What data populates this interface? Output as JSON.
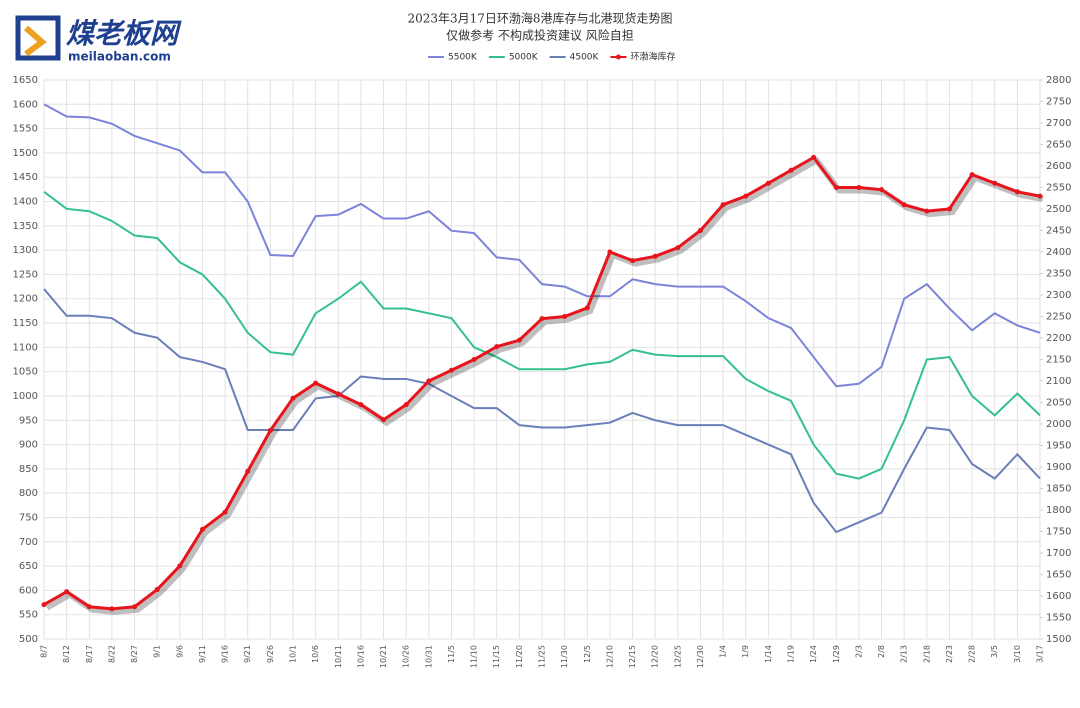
{
  "logo": {
    "name": "煤老板网",
    "url": "meilaoban.com"
  },
  "chart_data": {
    "type": "line",
    "title": "2023年3月17日环渤海8港库存与北港现货走势图",
    "subtitle": "仅做参考 不构成投资建议 风险自担",
    "legend": "top",
    "grid": true,
    "categories": [
      "8/7",
      "8/12",
      "8/17",
      "8/22",
      "8/27",
      "9/1",
      "9/6",
      "9/11",
      "9/16",
      "9/21",
      "9/26",
      "10/1",
      "10/6",
      "10/11",
      "10/16",
      "10/21",
      "10/26",
      "10/31",
      "11/5",
      "11/10",
      "11/15",
      "11/20",
      "11/25",
      "11/30",
      "12/5",
      "12/10",
      "12/15",
      "12/20",
      "12/25",
      "12/30",
      "1/4",
      "1/9",
      "1/14",
      "1/19",
      "1/24",
      "1/29",
      "2/3",
      "2/8",
      "2/13",
      "2/18",
      "2/23",
      "2/28",
      "3/5",
      "3/10",
      "3/17"
    ],
    "ylim": [
      500,
      1650
    ],
    "yticks": [
      500,
      550,
      600,
      650,
      700,
      750,
      800,
      850,
      900,
      950,
      1000,
      1050,
      1100,
      1150,
      1200,
      1250,
      1300,
      1350,
      1400,
      1450,
      1500,
      1550,
      1600,
      1650
    ],
    "y2lim": [
      1500,
      2800
    ],
    "y2ticks": [
      1500,
      1550,
      1600,
      1650,
      1700,
      1750,
      1800,
      1850,
      1900,
      1950,
      2000,
      2050,
      2100,
      2150,
      2200,
      2250,
      2300,
      2350,
      2400,
      2450,
      2500,
      2550,
      2600,
      2650,
      2700,
      2750,
      2800
    ],
    "series": [
      {
        "name": "5500K",
        "color": "#7b84d9",
        "values": [
          1600,
          1575,
          1573,
          1560,
          1535,
          1520,
          1505,
          1460,
          1460,
          1400,
          1290,
          1288,
          1370,
          1373,
          1395,
          1365,
          1365,
          1380,
          1340,
          1335,
          1285,
          1280,
          1230,
          1225,
          1205,
          1205,
          1240,
          1230,
          1225,
          1225,
          1225,
          1195,
          1160,
          1140,
          1080,
          1020,
          1025,
          1060,
          1200,
          1230,
          1180,
          1135,
          1170,
          1145,
          1130
        ]
      },
      {
        "name": "5000K",
        "color": "#33c18a",
        "values": [
          1420,
          1385,
          1380,
          1360,
          1330,
          1325,
          1275,
          1250,
          1200,
          1130,
          1090,
          1085,
          1170,
          1200,
          1235,
          1180,
          1180,
          1170,
          1160,
          1100,
          1080,
          1055,
          1055,
          1055,
          1065,
          1070,
          1095,
          1085,
          1082,
          1082,
          1082,
          1035,
          1010,
          990,
          900,
          840,
          830,
          850,
          950,
          1075,
          1080,
          1000,
          960,
          1005,
          960
        ]
      },
      {
        "name": "4500K",
        "color": "#6a7fb8",
        "values": [
          1220,
          1165,
          1165,
          1160,
          1130,
          1120,
          1080,
          1070,
          1055,
          930,
          930,
          930,
          995,
          1000,
          1040,
          1035,
          1035,
          1025,
          1000,
          975,
          975,
          940,
          935,
          935,
          940,
          945,
          965,
          950,
          940,
          940,
          940,
          920,
          900,
          880,
          780,
          720,
          740,
          760,
          850,
          935,
          930,
          860,
          830,
          880,
          830
        ]
      },
      {
        "name": "环渤海库存",
        "color": "#e8141b",
        "axis": "y2",
        "markers": true,
        "values": [
          1580,
          1610,
          1575,
          1570,
          1575,
          1615,
          1670,
          1755,
          1795,
          1890,
          1985,
          2060,
          2095,
          2070,
          2045,
          2010,
          2045,
          2100,
          2125,
          2150,
          2180,
          2195,
          2245,
          2250,
          2270,
          2400,
          2380,
          2390,
          2410,
          2450,
          2510,
          2530,
          2560,
          2590,
          2620,
          2550,
          2550,
          2545,
          2510,
          2495,
          2500,
          2580,
          2560,
          2540,
          2530
        ]
      }
    ]
  }
}
